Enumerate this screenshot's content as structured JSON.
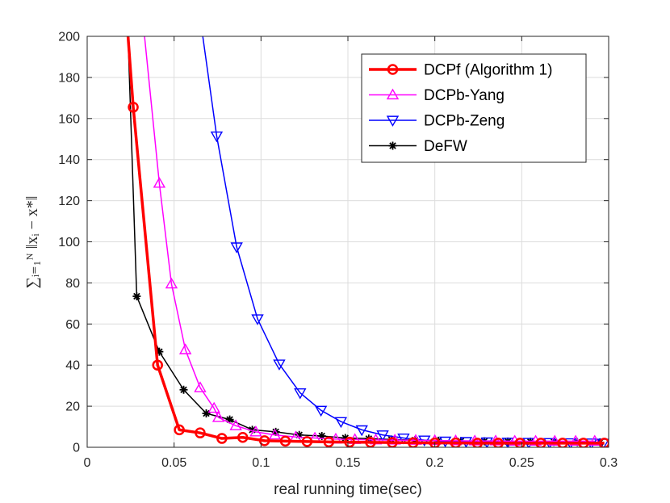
{
  "chart_data": {
    "type": "line",
    "xlabel": "real running time(sec)",
    "ylabel": "∑ᵢ₌₁ᴺ ‖xᵢ − x*‖",
    "xlim": [
      0,
      0.3
    ],
    "ylim": [
      0,
      200
    ],
    "xticks": [
      0,
      0.05,
      0.1,
      0.15,
      0.2,
      0.25,
      0.3
    ],
    "xtick_labels": [
      "0",
      "0.05",
      "0.1",
      "0.15",
      "0.2",
      "0.25",
      "0.3"
    ],
    "yticks": [
      0,
      20,
      40,
      60,
      80,
      100,
      120,
      140,
      160,
      180,
      200
    ],
    "ytick_labels": [
      "0",
      "20",
      "40",
      "60",
      "80",
      "100",
      "120",
      "140",
      "160",
      "180",
      "200"
    ],
    "grid": true,
    "legend_position": "top-right",
    "series": [
      {
        "name": "DCPf (Algorithm 1)",
        "color": "#ff0000",
        "marker": "circle",
        "stroke_width": "thick",
        "x": [
          0.0235,
          0.0265,
          0.0405,
          0.053,
          0.065,
          0.0775,
          0.0895,
          0.102,
          0.114,
          0.1265,
          0.139,
          0.151,
          0.163,
          0.1755,
          0.1875,
          0.2,
          0.212,
          0.2245,
          0.2365,
          0.249,
          0.261,
          0.2735,
          0.2855,
          0.2975
        ],
        "y": [
          200,
          165.5,
          40,
          8.5,
          7,
          4.3,
          4.8,
          3.2,
          3.0,
          2.8,
          2.6,
          2.5,
          2.4,
          2.3,
          2.2,
          2.1,
          2.1,
          2.0,
          2.0,
          2.0,
          2.0,
          2.0,
          2.0,
          2.0
        ]
      },
      {
        "name": "DCPb-Yang",
        "color": "#ff00ff",
        "marker": "triangle-up",
        "stroke_width": "normal",
        "x": [
          0.033,
          0.0415,
          0.0485,
          0.0565,
          0.065,
          0.073,
          0.0755,
          0.0855,
          0.097,
          0.108,
          0.12,
          0.131,
          0.143,
          0.154,
          0.166,
          0.177,
          0.189,
          0.2,
          0.212,
          0.223,
          0.235,
          0.246,
          0.258,
          0.269,
          0.281,
          0.292
        ],
        "y": [
          200,
          128.5,
          79.5,
          47.5,
          29,
          19,
          14.5,
          10.5,
          7.5,
          6,
          5,
          4.5,
          4,
          3.8,
          3.6,
          3.5,
          3.4,
          3.3,
          3.2,
          3.1,
          3.1,
          3.0,
          3.0,
          3.0,
          3.0,
          3.0
        ]
      },
      {
        "name": "DCPb-Zeng",
        "color": "#0000ff",
        "marker": "triangle-down",
        "stroke_width": "normal",
        "x": [
          0.0665,
          0.0745,
          0.086,
          0.098,
          0.1105,
          0.1225,
          0.1345,
          0.146,
          0.158,
          0.17,
          0.182,
          0.194,
          0.206,
          0.218,
          0.23,
          0.242,
          0.254,
          0.266,
          0.278,
          0.29,
          0.297
        ],
        "y": [
          200,
          151.5,
          97.5,
          62.5,
          40.5,
          26.5,
          18,
          12.5,
          8.5,
          6,
          4.5,
          3.5,
          3,
          2.8,
          2.6,
          2.5,
          2.4,
          2.3,
          2.2,
          2.1,
          2.0
        ]
      },
      {
        "name": "DeFW",
        "color": "#000000",
        "marker": "asterisk",
        "stroke_width": "normal",
        "x": [
          0.0235,
          0.0285,
          0.0415,
          0.0555,
          0.0685,
          0.082,
          0.095,
          0.1085,
          0.122,
          0.135,
          0.1485,
          0.162,
          0.175,
          0.1885,
          0.202,
          0.215,
          0.2285,
          0.242,
          0.255,
          0.2685,
          0.282,
          0.295
        ],
        "y": [
          200,
          73.5,
          46.5,
          28,
          16.5,
          13.5,
          8.5,
          7.5,
          6,
          5.5,
          4.5,
          4.2,
          3.8,
          3.5,
          3.2,
          3,
          2.9,
          2.8,
          2.7,
          2.6,
          2.5,
          2.4
        ]
      }
    ]
  }
}
